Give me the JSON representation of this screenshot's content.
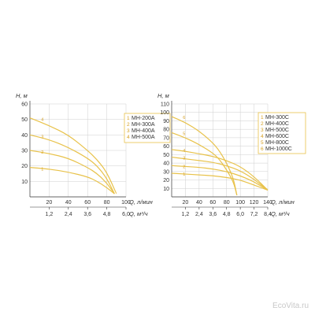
{
  "watermark": "EcoVita.ru",
  "colors": {
    "curve": "#e8c24a",
    "number": "#d6a021",
    "grid": "#cfcfcf",
    "axis": "#333333"
  },
  "chart_data": [
    {
      "type": "line",
      "title": "",
      "ylabel": "H, м",
      "xlabel": "Q, л/мин",
      "xlabel2": "Q, м³/ч",
      "xlim": [
        0,
        100
      ],
      "ylim": [
        0,
        60
      ],
      "xticks": [
        "20",
        "40",
        "60",
        "80",
        "100"
      ],
      "x2ticks": [
        "1,2",
        "2,4",
        "3,6",
        "4,8",
        "6,0"
      ],
      "yticks": [
        "10",
        "20",
        "30",
        "40",
        "50",
        "60"
      ],
      "grid": true,
      "legend_position": "right",
      "series": [
        {
          "name": "MH-200A",
          "number": "1",
          "x": [
            0,
            20,
            40,
            60,
            70,
            80,
            88
          ],
          "y": [
            19,
            18,
            16,
            13,
            10,
            6,
            2
          ]
        },
        {
          "name": "MH-300A",
          "number": "2",
          "x": [
            0,
            20,
            40,
            60,
            70,
            80,
            88
          ],
          "y": [
            30,
            28,
            25,
            19,
            15,
            9,
            2
          ]
        },
        {
          "name": "MH-400A",
          "number": "3",
          "x": [
            0,
            20,
            40,
            60,
            70,
            80,
            88
          ],
          "y": [
            40,
            37,
            32,
            25,
            20,
            12,
            2
          ]
        },
        {
          "name": "MH-500A",
          "number": "4",
          "x": [
            0,
            20,
            40,
            60,
            70,
            80,
            90
          ],
          "y": [
            51,
            46,
            40,
            30,
            24,
            16,
            2
          ]
        }
      ]
    },
    {
      "type": "line",
      "title": "",
      "ylabel": "H, м",
      "xlabel": "Q, л/мин",
      "xlabel2": "Q, м³/ч",
      "xlim": [
        0,
        140
      ],
      "ylim": [
        0,
        110
      ],
      "xticks": [
        "20",
        "40",
        "60",
        "80",
        "100",
        "120",
        "140"
      ],
      "x2ticks": [
        "1,2",
        "2,4",
        "3,6",
        "4,8",
        "6,0",
        "7,2",
        "8,4"
      ],
      "yticks": [
        "10",
        "20",
        "30",
        "40",
        "50",
        "60",
        "70",
        "80",
        "90",
        "100",
        "110"
      ],
      "grid": true,
      "legend_position": "right",
      "series": [
        {
          "name": "MH-300C",
          "number": "1",
          "x": [
            0,
            20,
            40,
            60,
            80,
            100,
            120,
            140
          ],
          "y": [
            28,
            27,
            26,
            25,
            23,
            20,
            14,
            8
          ]
        },
        {
          "name": "MH-400C",
          "number": "2",
          "x": [
            0,
            20,
            40,
            60,
            80,
            100,
            120,
            140
          ],
          "y": [
            37,
            36,
            35,
            33,
            30,
            25,
            18,
            8
          ]
        },
        {
          "name": "MH-500C",
          "number": "3",
          "x": [
            0,
            20,
            40,
            60,
            80,
            100,
            120,
            140
          ],
          "y": [
            47,
            45,
            43,
            41,
            37,
            31,
            21,
            8
          ]
        },
        {
          "name": "MH-600C",
          "number": "4",
          "x": [
            0,
            20,
            40,
            60,
            80,
            100,
            120,
            140
          ],
          "y": [
            56,
            54,
            51,
            48,
            43,
            36,
            24,
            8
          ]
        },
        {
          "name": "MH-800C",
          "number": "5",
          "x": [
            0,
            20,
            40,
            60,
            70,
            80,
            90,
            95
          ],
          "y": [
            76,
            70,
            62,
            52,
            44,
            32,
            18,
            2
          ]
        },
        {
          "name": "MH-1000C",
          "number": "6",
          "x": [
            0,
            20,
            40,
            60,
            70,
            80,
            90,
            95
          ],
          "y": [
            95,
            88,
            78,
            64,
            54,
            40,
            22,
            2
          ]
        }
      ]
    }
  ]
}
